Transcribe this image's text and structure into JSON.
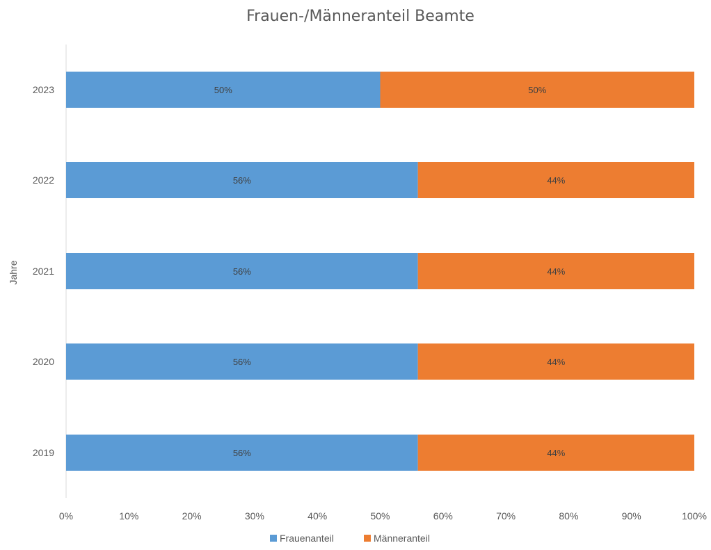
{
  "chart_data": {
    "type": "bar",
    "orientation": "horizontal",
    "stacked": true,
    "percent_stacked": true,
    "title": "Frauen-/Männeranteil Beamte",
    "xlabel": "",
    "ylabel": "Jahre",
    "categories": [
      "2023",
      "2022",
      "2021",
      "2020",
      "2019"
    ],
    "series": [
      {
        "name": "Frauenanteil",
        "color": "#5B9BD5",
        "values": [
          50,
          56,
          56,
          56,
          56
        ],
        "labels": [
          "50%",
          "56%",
          "56%",
          "56%",
          "56%"
        ]
      },
      {
        "name": "Männeranteil",
        "color": "#ED7D31",
        "values": [
          50,
          44,
          44,
          44,
          44
        ],
        "labels": [
          "50%",
          "44%",
          "44%",
          "44%",
          "44%"
        ]
      }
    ],
    "xlim": [
      0,
      100
    ],
    "x_ticks": [
      "0%",
      "10%",
      "20%",
      "30%",
      "40%",
      "50%",
      "60%",
      "70%",
      "80%",
      "90%",
      "100%"
    ],
    "grid": false,
    "legend_position": "bottom"
  }
}
